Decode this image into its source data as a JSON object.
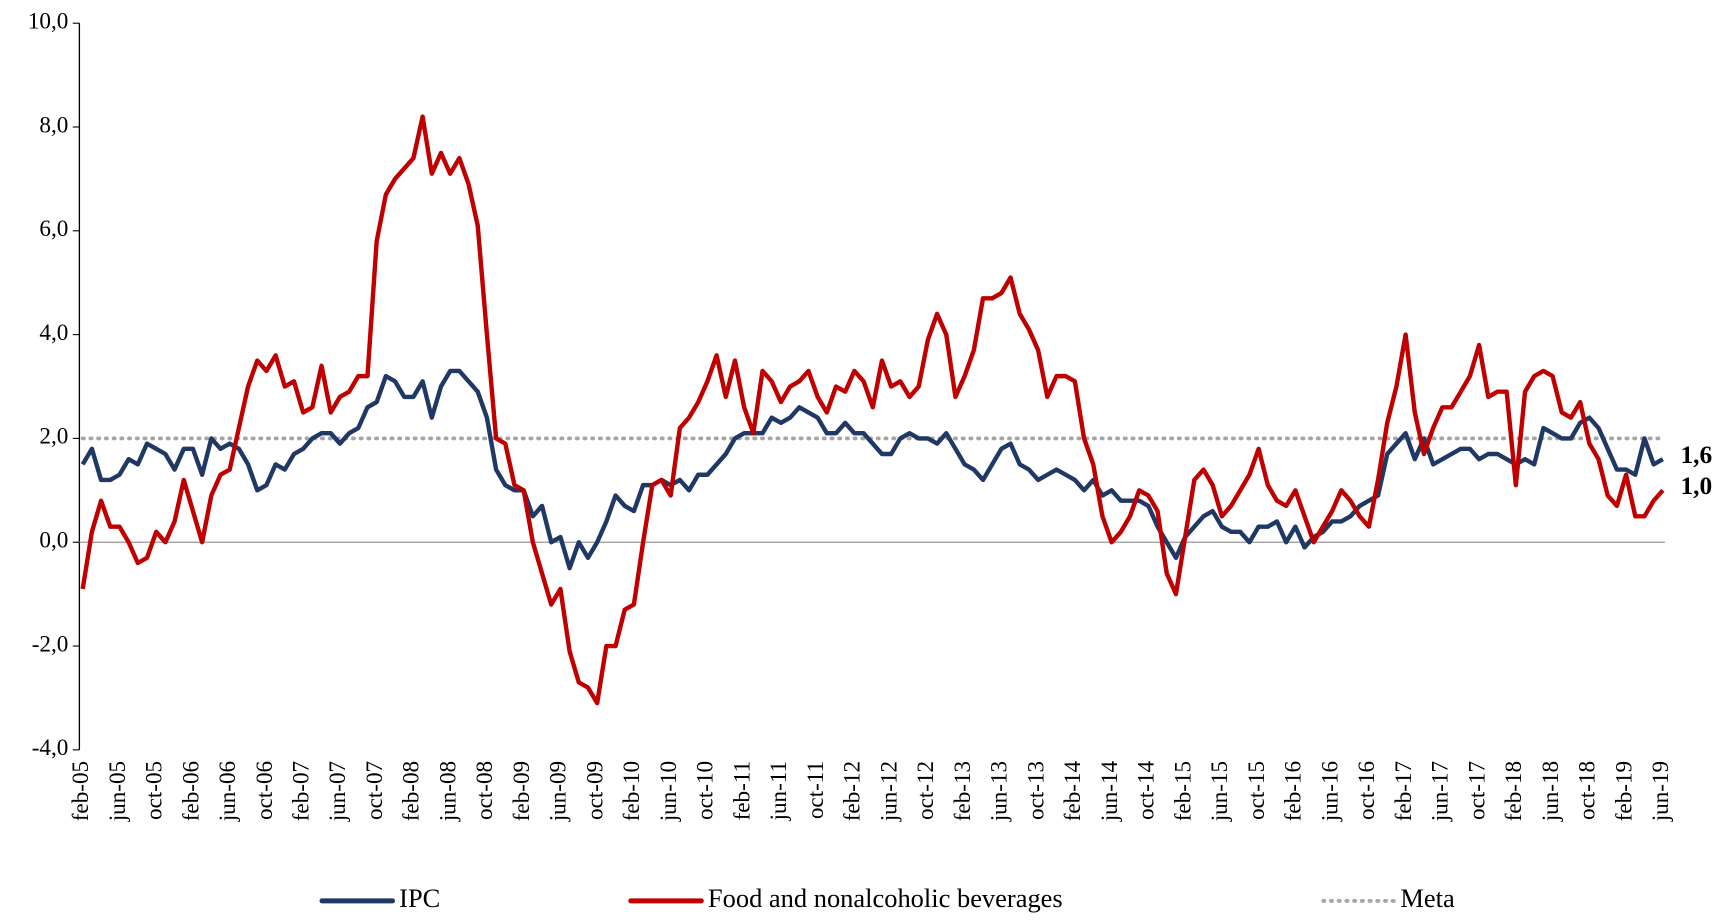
{
  "chart_data": {
    "type": "line",
    "categories": [
      "feb-05",
      null,
      null,
      null,
      "jun-05",
      null,
      null,
      null,
      "oct-05",
      null,
      null,
      null,
      "feb-06",
      null,
      null,
      null,
      "jun-06",
      null,
      null,
      null,
      "oct-06",
      null,
      null,
      null,
      "feb-07",
      null,
      null,
      null,
      "jun-07",
      null,
      null,
      null,
      "oct-07",
      null,
      null,
      null,
      "feb-08",
      null,
      null,
      null,
      "jun-08",
      null,
      null,
      null,
      "oct-08",
      null,
      null,
      null,
      "feb-09",
      null,
      null,
      null,
      "jun-09",
      null,
      null,
      null,
      "oct-09",
      null,
      null,
      null,
      "feb-10",
      null,
      null,
      null,
      "jun-10",
      null,
      null,
      null,
      "oct-10",
      null,
      null,
      null,
      "feb-11",
      null,
      null,
      null,
      "jun-11",
      null,
      null,
      null,
      "oct-11",
      null,
      null,
      null,
      "feb-12",
      null,
      null,
      null,
      "jun-12",
      null,
      null,
      null,
      "oct-12",
      null,
      null,
      null,
      "feb-13",
      null,
      null,
      null,
      "jun-13",
      null,
      null,
      null,
      "oct-13",
      null,
      null,
      null,
      "feb-14",
      null,
      null,
      null,
      "jun-14",
      null,
      null,
      null,
      "oct-14",
      null,
      null,
      null,
      "feb-15",
      null,
      null,
      null,
      "jun-15",
      null,
      null,
      null,
      "oct-15",
      null,
      null,
      null,
      "feb-16",
      null,
      null,
      null,
      "jun-16",
      null,
      null,
      null,
      "oct-16",
      null,
      null,
      null,
      "feb-17",
      null,
      null,
      null,
      "jun-17",
      null,
      null,
      null,
      "oct-17",
      null,
      null,
      null,
      "feb-18",
      null,
      null,
      null,
      "jun-18",
      null,
      null,
      null,
      "oct-18",
      null,
      null,
      null,
      "feb-19",
      null,
      null,
      null,
      "jun-19"
    ],
    "series": [
      {
        "name": "IPC",
        "color": "#1f3864",
        "last_label": "1,6",
        "values": [
          1.5,
          1.8,
          1.2,
          1.2,
          1.3,
          1.6,
          1.5,
          1.9,
          1.8,
          1.7,
          1.4,
          1.8,
          1.8,
          1.3,
          2.0,
          1.8,
          1.9,
          1.8,
          1.5,
          1.0,
          1.1,
          1.5,
          1.4,
          1.7,
          1.8,
          2.0,
          2.1,
          2.1,
          1.9,
          2.1,
          2.2,
          2.6,
          2.7,
          3.2,
          3.1,
          2.8,
          2.8,
          3.1,
          2.4,
          3.0,
          3.3,
          3.3,
          3.1,
          2.9,
          2.4,
          1.4,
          1.1,
          1.0,
          1.0,
          0.5,
          0.7,
          0.0,
          0.1,
          -0.5,
          0.0,
          -0.3,
          0.0,
          0.4,
          0.9,
          0.7,
          0.6,
          1.1,
          1.1,
          1.2,
          1.1,
          1.2,
          1.0,
          1.3,
          1.3,
          1.5,
          1.7,
          2.0,
          2.1,
          2.1,
          2.1,
          2.4,
          2.3,
          2.4,
          2.6,
          2.5,
          2.4,
          2.1,
          2.1,
          2.3,
          2.1,
          2.1,
          1.9,
          1.7,
          1.7,
          2.0,
          2.1,
          2.0,
          2.0,
          1.9,
          2.1,
          1.8,
          1.5,
          1.4,
          1.2,
          1.5,
          1.8,
          1.9,
          1.5,
          1.4,
          1.2,
          1.3,
          1.4,
          1.3,
          1.2,
          1.0,
          1.2,
          0.9,
          1.0,
          0.8,
          0.8,
          0.8,
          0.7,
          0.3,
          0.0,
          -0.3,
          0.1,
          0.3,
          0.5,
          0.6,
          0.3,
          0.2,
          0.2,
          0.0,
          0.3,
          0.3,
          0.4,
          0.0,
          0.3,
          -0.1,
          0.1,
          0.2,
          0.4,
          0.4,
          0.5,
          0.7,
          0.8,
          0.9,
          1.7,
          1.9,
          2.1,
          1.6,
          2.0,
          1.5,
          1.6,
          1.7,
          1.8,
          1.8,
          1.6,
          1.7,
          1.7,
          1.6,
          1.5,
          1.6,
          1.5,
          2.2,
          2.1,
          2.0,
          2.0,
          2.3,
          2.4,
          2.2,
          1.8,
          1.4,
          1.4,
          1.3,
          2.0,
          1.5,
          1.6
        ]
      },
      {
        "name": "Food and nonalcoholic beverages",
        "color": "#c00000",
        "last_label": "1,0",
        "values": [
          -0.9,
          0.2,
          0.8,
          0.3,
          0.3,
          0.0,
          -0.4,
          -0.3,
          0.2,
          0.0,
          0.4,
          1.2,
          0.6,
          0.0,
          0.9,
          1.3,
          1.4,
          2.2,
          3.0,
          3.5,
          3.3,
          3.6,
          3.0,
          3.1,
          2.5,
          2.6,
          3.4,
          2.5,
          2.8,
          2.9,
          3.2,
          3.2,
          5.8,
          6.7,
          7.0,
          7.2,
          7.4,
          8.2,
          7.1,
          7.5,
          7.1,
          7.4,
          6.9,
          6.1,
          4.0,
          2.0,
          1.9,
          1.1,
          1.0,
          0.0,
          -0.6,
          -1.2,
          -0.9,
          -2.1,
          -2.7,
          -2.8,
          -3.1,
          -2.0,
          -2.0,
          -1.3,
          -1.2,
          0.0,
          1.1,
          1.2,
          0.9,
          2.2,
          2.4,
          2.7,
          3.1,
          3.6,
          2.8,
          3.5,
          2.6,
          2.1,
          3.3,
          3.1,
          2.7,
          3.0,
          3.1,
          3.3,
          2.8,
          2.5,
          3.0,
          2.9,
          3.3,
          3.1,
          2.6,
          3.5,
          3.0,
          3.1,
          2.8,
          3.0,
          3.9,
          4.4,
          4.0,
          2.8,
          3.2,
          3.7,
          4.7,
          4.7,
          4.8,
          5.1,
          4.4,
          4.1,
          3.7,
          2.8,
          3.2,
          3.2,
          3.1,
          2.0,
          1.5,
          0.5,
          0.0,
          0.2,
          0.5,
          1.0,
          0.9,
          0.6,
          -0.6,
          -1.0,
          0.1,
          1.2,
          1.4,
          1.1,
          0.5,
          0.7,
          1.0,
          1.3,
          1.8,
          1.1,
          0.8,
          0.7,
          1.0,
          0.5,
          0.0,
          0.3,
          0.6,
          1.0,
          0.8,
          0.5,
          0.3,
          1.2,
          2.3,
          3.0,
          4.0,
          2.5,
          1.7,
          2.2,
          2.6,
          2.6,
          2.9,
          3.2,
          3.8,
          2.8,
          2.9,
          2.9,
          1.1,
          2.9,
          3.2,
          3.3,
          3.2,
          2.5,
          2.4,
          2.7,
          1.9,
          1.6,
          0.9,
          0.7,
          1.3,
          0.5,
          0.5,
          0.8,
          1.0
        ]
      }
    ],
    "reference_lines": [
      {
        "name": "Meta",
        "value": 2,
        "color": "#a6a6a6"
      }
    ],
    "ylim": [
      -4,
      10
    ],
    "yticks": [
      {
        "value": -4,
        "label": "-4,0"
      },
      {
        "value": -2,
        "label": "-2,0"
      },
      {
        "value": 0,
        "label": "0,0"
      },
      {
        "value": 2,
        "label": "2,0"
      },
      {
        "value": 4,
        "label": "4,0"
      },
      {
        "value": 6,
        "label": "6,0"
      },
      {
        "value": 8,
        "label": "8,0"
      },
      {
        "value": 10,
        "label": "10,0"
      }
    ],
    "legend": "bottom"
  }
}
